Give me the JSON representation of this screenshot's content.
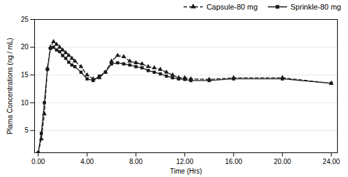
{
  "chart_data": {
    "type": "line",
    "x": [
      0,
      0.25,
      0.5,
      0.75,
      1.0,
      1.25,
      1.5,
      1.75,
      2.0,
      2.25,
      2.5,
      2.75,
      3.0,
      3.5,
      4.0,
      4.5,
      5.0,
      5.5,
      6.0,
      6.5,
      7.0,
      7.5,
      8.0,
      8.5,
      9.0,
      9.5,
      10.0,
      10.5,
      11.0,
      11.5,
      12.0,
      12.5,
      14.0,
      16.0,
      20.0,
      24.0
    ],
    "series": [
      {
        "name": "Capsule-80 mg",
        "color": "#1a1a1a",
        "marker": "triangle",
        "line_style": "dashed",
        "values": [
          1.0,
          3.5,
          8.0,
          16.2,
          20.0,
          21.0,
          20.5,
          20.0,
          19.5,
          19.0,
          18.5,
          18.0,
          17.5,
          16.5,
          15.0,
          14.3,
          14.5,
          15.5,
          17.5,
          18.5,
          18.3,
          17.5,
          17.2,
          17.0,
          16.5,
          16.3,
          16.0,
          15.5,
          15.0,
          14.5,
          14.5,
          14.3,
          14.2,
          14.5,
          14.5,
          13.5
        ]
      },
      {
        "name": "Sprinkle-80 mg",
        "color": "#1a1a1a",
        "marker": "square",
        "line_style": "solid",
        "values": [
          1.0,
          4.5,
          10.0,
          16.0,
          19.8,
          20.0,
          19.5,
          19.2,
          18.5,
          18.0,
          17.3,
          16.8,
          16.5,
          15.5,
          14.3,
          14.0,
          14.8,
          15.5,
          17.0,
          17.2,
          17.0,
          16.8,
          16.5,
          16.3,
          15.8,
          15.5,
          15.2,
          14.8,
          14.5,
          14.3,
          14.2,
          14.0,
          14.0,
          14.3,
          14.3,
          13.5
        ]
      }
    ],
    "xlabel": "Time (Hrs)",
    "ylabel": "Plama Concentrations (ng / mL)",
    "xlim": [
      -0.3,
      24.5
    ],
    "ylim": [
      1,
      25
    ],
    "xticks": [
      {
        "value": 0,
        "label": "0.00"
      },
      {
        "value": 4,
        "label": "4.00"
      },
      {
        "value": 8,
        "label": "8.00"
      },
      {
        "value": 12,
        "label": "12.00"
      },
      {
        "value": 16,
        "label": "16.00"
      },
      {
        "value": 20,
        "label": "20.00"
      },
      {
        "value": 24,
        "label": "24.00"
      }
    ],
    "yticks": [
      5,
      10,
      15,
      20,
      25
    ],
    "grid": true,
    "legend": "upper right"
  }
}
